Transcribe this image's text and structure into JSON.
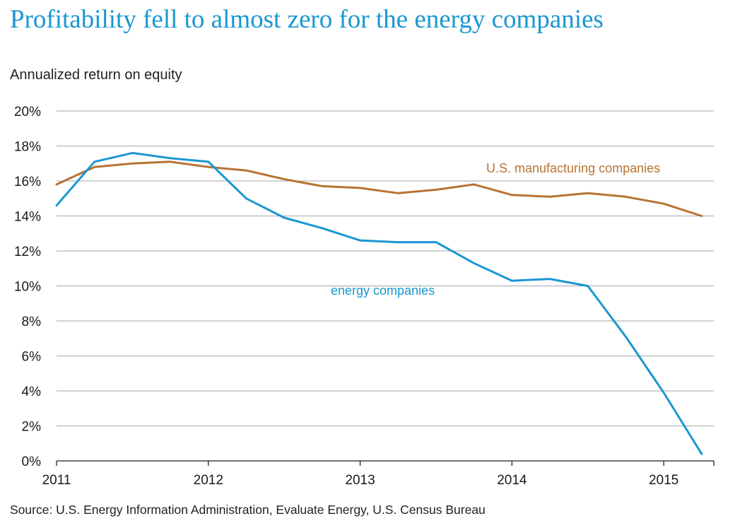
{
  "title": "Profitability fell to almost zero for the energy companies",
  "source": "Source: U.S. Energy Information Administration, Evaluate Energy, U.S. Census Bureau",
  "chart_data": {
    "type": "line",
    "ylabel": "Annualized return on equity",
    "xlim": [
      2011,
      2015.33
    ],
    "ylim": [
      0,
      20
    ],
    "y_ticks": [
      0,
      2,
      4,
      6,
      8,
      10,
      12,
      14,
      16,
      18,
      20
    ],
    "y_tick_labels": [
      "0%",
      "2%",
      "4%",
      "6%",
      "8%",
      "10%",
      "12%",
      "14%",
      "16%",
      "18%",
      "20%"
    ],
    "x_ticks": [
      2011,
      2012,
      2013,
      2014,
      2015
    ],
    "x_tick_labels": [
      "2011",
      "2012",
      "2013",
      "2014",
      "2015"
    ],
    "grid": "horizontal",
    "x": [
      2011.0,
      2011.25,
      2011.5,
      2011.75,
      2012.0,
      2012.25,
      2012.5,
      2012.75,
      2013.0,
      2013.25,
      2013.5,
      2013.75,
      2014.0,
      2014.25,
      2014.5,
      2014.75,
      2015.0,
      2015.25
    ],
    "series": [
      {
        "name": "U.S. manufacturing companies",
        "color": "#b87333",
        "values": [
          15.8,
          16.8,
          17.0,
          17.1,
          16.8,
          16.6,
          16.1,
          15.7,
          15.6,
          15.3,
          15.5,
          15.8,
          15.2,
          15.1,
          15.3,
          15.1,
          14.7,
          14.0
        ]
      },
      {
        "name": "energy companies",
        "color": "#1a97d2",
        "values": [
          14.6,
          17.1,
          17.6,
          17.3,
          17.1,
          15.0,
          13.9,
          13.3,
          12.6,
          12.5,
          12.5,
          11.3,
          10.3,
          10.4,
          10.0,
          7.1,
          3.9,
          0.4
        ]
      }
    ]
  }
}
